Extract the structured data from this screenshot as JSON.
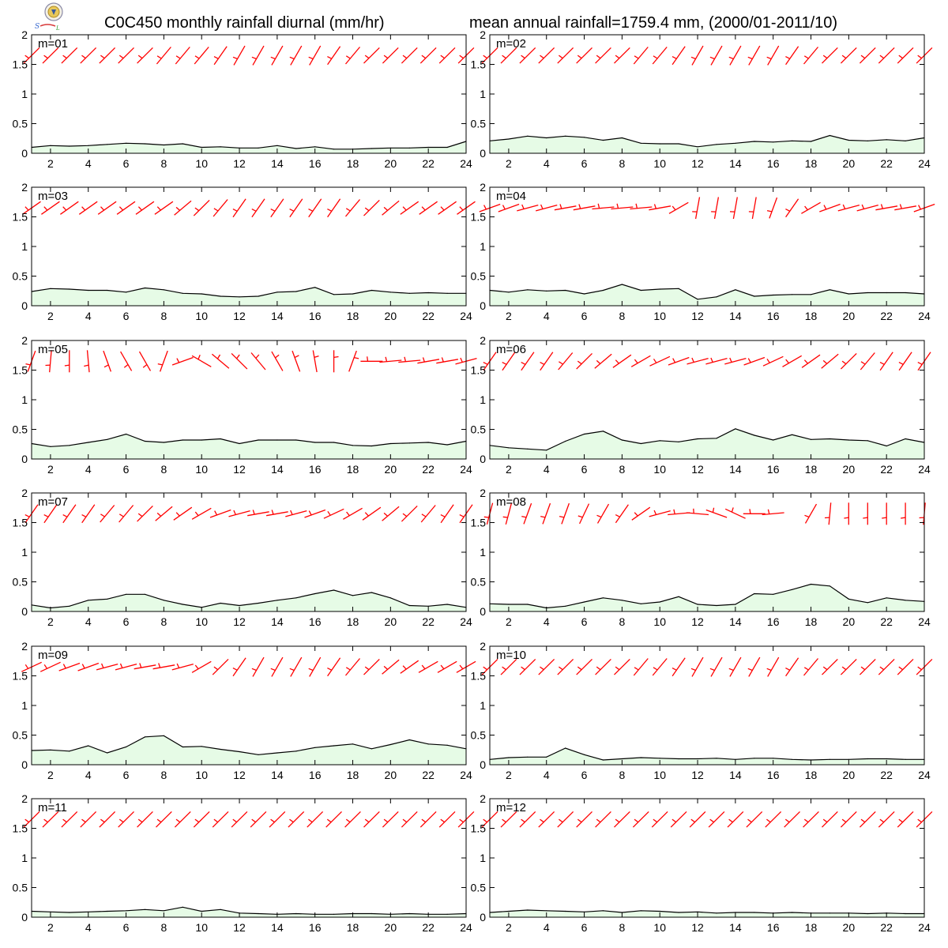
{
  "header": {
    "title_left": "C0C450 monthly rainfall diurnal (mm/hr)",
    "title_right": "mean annual rainfall=1759.4 mm, (2000/01-2011/10)",
    "logo_icon": "weather-lab-logo"
  },
  "colors": {
    "rain_fill": "#e6fbe6",
    "rain_line": "#000000",
    "wind_barb": "#ff0000"
  },
  "chart_data": [
    {
      "type": "area",
      "label": "m=01",
      "x": [
        1,
        2,
        3,
        4,
        5,
        6,
        7,
        8,
        9,
        10,
        11,
        12,
        13,
        14,
        15,
        16,
        17,
        18,
        19,
        20,
        21,
        22,
        23,
        24
      ],
      "values": [
        0.1,
        0.13,
        0.12,
        0.13,
        0.15,
        0.17,
        0.16,
        0.14,
        0.16,
        0.1,
        0.11,
        0.09,
        0.09,
        0.13,
        0.08,
        0.11,
        0.07,
        0.07,
        0.08,
        0.09,
        0.09,
        0.1,
        0.1,
        0.2
      ],
      "ylim": [
        0,
        2
      ],
      "xticks": [
        2,
        4,
        6,
        8,
        10,
        12,
        14,
        16,
        18,
        20,
        22,
        24
      ],
      "yticks": [
        0,
        0.5,
        1,
        1.5,
        2
      ],
      "wind_dir": [
        225,
        225,
        225,
        225,
        225,
        225,
        225,
        220,
        220,
        220,
        215,
        210,
        210,
        210,
        210,
        210,
        215,
        220,
        225,
        225,
        225,
        225,
        225,
        225
      ]
    },
    {
      "type": "area",
      "label": "m=02",
      "x": [
        1,
        2,
        3,
        4,
        5,
        6,
        7,
        8,
        9,
        10,
        11,
        12,
        13,
        14,
        15,
        16,
        17,
        18,
        19,
        20,
        21,
        22,
        23,
        24
      ],
      "values": [
        0.21,
        0.24,
        0.29,
        0.26,
        0.29,
        0.27,
        0.22,
        0.26,
        0.17,
        0.16,
        0.16,
        0.11,
        0.15,
        0.17,
        0.2,
        0.19,
        0.21,
        0.2,
        0.3,
        0.22,
        0.21,
        0.23,
        0.21,
        0.26
      ],
      "ylim": [
        0,
        2
      ],
      "xticks": [
        2,
        4,
        6,
        8,
        10,
        12,
        14,
        16,
        18,
        20,
        22,
        24
      ],
      "yticks": [
        0,
        0.5,
        1,
        1.5,
        2
      ],
      "wind_dir": [
        225,
        225,
        225,
        225,
        225,
        225,
        225,
        225,
        220,
        220,
        215,
        210,
        210,
        210,
        210,
        210,
        215,
        220,
        225,
        225,
        225,
        225,
        225,
        225
      ]
    },
    {
      "type": "area",
      "label": "m=03",
      "x": [
        1,
        2,
        3,
        4,
        5,
        6,
        7,
        8,
        9,
        10,
        11,
        12,
        13,
        14,
        15,
        16,
        17,
        18,
        19,
        20,
        21,
        22,
        23,
        24
      ],
      "values": [
        0.24,
        0.29,
        0.28,
        0.26,
        0.26,
        0.23,
        0.3,
        0.27,
        0.21,
        0.2,
        0.16,
        0.15,
        0.16,
        0.23,
        0.24,
        0.31,
        0.19,
        0.2,
        0.26,
        0.23,
        0.21,
        0.22,
        0.21,
        0.21
      ],
      "ylim": [
        0,
        2
      ],
      "xticks": [
        2,
        4,
        6,
        8,
        10,
        12,
        14,
        16,
        18,
        20,
        22,
        24
      ],
      "yticks": [
        0,
        0.5,
        1,
        1.5,
        2
      ],
      "wind_dir": [
        235,
        235,
        235,
        235,
        235,
        235,
        235,
        235,
        230,
        225,
        220,
        215,
        215,
        215,
        215,
        215,
        215,
        220,
        225,
        230,
        235,
        235,
        235,
        235
      ]
    },
    {
      "type": "area",
      "label": "m=04",
      "x": [
        1,
        2,
        3,
        4,
        5,
        6,
        7,
        8,
        9,
        10,
        11,
        12,
        13,
        14,
        15,
        16,
        17,
        18,
        19,
        20,
        21,
        22,
        23,
        24
      ],
      "values": [
        0.26,
        0.23,
        0.27,
        0.25,
        0.26,
        0.2,
        0.26,
        0.36,
        0.26,
        0.28,
        0.29,
        0.11,
        0.15,
        0.27,
        0.16,
        0.18,
        0.19,
        0.19,
        0.27,
        0.2,
        0.22,
        0.22,
        0.22,
        0.2
      ],
      "ylim": [
        0,
        2
      ],
      "xticks": [
        2,
        4,
        6,
        8,
        10,
        12,
        14,
        16,
        18,
        20,
        22,
        24
      ],
      "yticks": [
        0,
        0.5,
        1,
        1.5,
        2
      ],
      "wind_dir": [
        250,
        250,
        255,
        255,
        260,
        260,
        265,
        265,
        265,
        260,
        240,
        190,
        190,
        190,
        190,
        200,
        215,
        240,
        250,
        255,
        255,
        260,
        260,
        250
      ]
    },
    {
      "type": "area",
      "label": "m=05",
      "x": [
        1,
        2,
        3,
        4,
        5,
        6,
        7,
        8,
        9,
        10,
        11,
        12,
        13,
        14,
        15,
        16,
        17,
        18,
        19,
        20,
        21,
        22,
        23,
        24
      ],
      "values": [
        0.26,
        0.21,
        0.23,
        0.28,
        0.33,
        0.42,
        0.3,
        0.28,
        0.32,
        0.32,
        0.34,
        0.26,
        0.32,
        0.32,
        0.32,
        0.28,
        0.28,
        0.23,
        0.22,
        0.26,
        0.27,
        0.28,
        0.24,
        0.3
      ],
      "ylim": [
        0,
        2
      ],
      "xticks": [
        2,
        4,
        6,
        8,
        10,
        12,
        14,
        16,
        18,
        20,
        22,
        24
      ],
      "yticks": [
        0,
        0.5,
        1,
        1.5,
        2
      ],
      "wind_dir": [
        200,
        185,
        180,
        175,
        160,
        150,
        150,
        200,
        250,
        300,
        310,
        315,
        320,
        330,
        340,
        350,
        0,
        20,
        270,
        265,
        265,
        260,
        260,
        255
      ]
    },
    {
      "type": "area",
      "label": "m=06",
      "x": [
        1,
        2,
        3,
        4,
        5,
        6,
        7,
        8,
        9,
        10,
        11,
        12,
        13,
        14,
        15,
        16,
        17,
        18,
        19,
        20,
        21,
        22,
        23,
        24
      ],
      "values": [
        0.23,
        0.19,
        0.17,
        0.15,
        0.3,
        0.42,
        0.47,
        0.32,
        0.26,
        0.31,
        0.29,
        0.34,
        0.35,
        0.51,
        0.4,
        0.32,
        0.41,
        0.33,
        0.34,
        0.32,
        0.31,
        0.22,
        0.34,
        0.28
      ],
      "ylim": [
        0,
        2
      ],
      "xticks": [
        2,
        4,
        6,
        8,
        10,
        12,
        14,
        16,
        18,
        20,
        22,
        24
      ],
      "yticks": [
        0,
        0.5,
        1,
        1.5,
        2
      ],
      "wind_dir": [
        215,
        215,
        215,
        215,
        220,
        225,
        230,
        235,
        240,
        245,
        250,
        255,
        255,
        255,
        250,
        245,
        240,
        235,
        230,
        225,
        220,
        215,
        215,
        215
      ]
    },
    {
      "type": "area",
      "label": "m=07",
      "x": [
        1,
        2,
        3,
        4,
        5,
        6,
        7,
        8,
        9,
        10,
        11,
        12,
        13,
        14,
        15,
        16,
        17,
        18,
        19,
        20,
        21,
        22,
        23,
        24
      ],
      "values": [
        0.11,
        0.06,
        0.09,
        0.19,
        0.21,
        0.29,
        0.29,
        0.19,
        0.12,
        0.07,
        0.14,
        0.1,
        0.14,
        0.19,
        0.23,
        0.3,
        0.36,
        0.27,
        0.32,
        0.23,
        0.1,
        0.09,
        0.12,
        0.07
      ],
      "ylim": [
        0,
        2
      ],
      "xticks": [
        2,
        4,
        6,
        8,
        10,
        12,
        14,
        16,
        18,
        20,
        22,
        24
      ],
      "yticks": [
        0,
        0.5,
        1,
        1.5,
        2
      ],
      "wind_dir": [
        215,
        215,
        215,
        215,
        220,
        220,
        225,
        230,
        235,
        240,
        250,
        255,
        260,
        260,
        255,
        250,
        245,
        240,
        235,
        230,
        225,
        220,
        215,
        215
      ]
    },
    {
      "type": "area",
      "label": "m=08",
      "x": [
        1,
        2,
        3,
        4,
        5,
        6,
        7,
        8,
        9,
        10,
        11,
        12,
        13,
        14,
        15,
        16,
        17,
        18,
        19,
        20,
        21,
        22,
        23,
        24
      ],
      "values": [
        0.13,
        0.12,
        0.12,
        0.06,
        0.09,
        0.16,
        0.23,
        0.19,
        0.13,
        0.16,
        0.25,
        0.12,
        0.1,
        0.12,
        0.3,
        0.29,
        0.37,
        0.46,
        0.43,
        0.21,
        0.15,
        0.23,
        0.19,
        0.17
      ],
      "ylim": [
        0,
        2
      ],
      "xticks": [
        2,
        4,
        6,
        8,
        10,
        12,
        14,
        16,
        18,
        20,
        22,
        24
      ],
      "yticks": [
        0,
        0.5,
        1,
        1.5,
        2
      ],
      "wind_dir": [
        195,
        195,
        200,
        200,
        200,
        205,
        210,
        215,
        235,
        255,
        265,
        275,
        290,
        295,
        270,
        265,
        null,
        210,
        185,
        180,
        180,
        180,
        180,
        185
      ]
    },
    {
      "type": "area",
      "label": "m=09",
      "x": [
        1,
        2,
        3,
        4,
        5,
        6,
        7,
        8,
        9,
        10,
        11,
        12,
        13,
        14,
        15,
        16,
        17,
        18,
        19,
        20,
        21,
        22,
        23,
        24
      ],
      "values": [
        0.24,
        0.25,
        0.23,
        0.32,
        0.2,
        0.3,
        0.47,
        0.49,
        0.3,
        0.31,
        0.26,
        0.22,
        0.17,
        0.2,
        0.23,
        0.29,
        0.32,
        0.35,
        0.27,
        0.34,
        0.42,
        0.35,
        0.33,
        0.27
      ],
      "ylim": [
        0,
        2
      ],
      "xticks": [
        2,
        4,
        6,
        8,
        10,
        12,
        14,
        16,
        18,
        20,
        22,
        24
      ],
      "yticks": [
        0,
        0.5,
        1,
        1.5,
        2
      ],
      "wind_dir": [
        245,
        245,
        250,
        250,
        255,
        255,
        260,
        260,
        255,
        240,
        225,
        215,
        210,
        210,
        210,
        210,
        215,
        220,
        225,
        230,
        235,
        240,
        240,
        240
      ]
    },
    {
      "type": "area",
      "label": "m=10",
      "x": [
        1,
        2,
        3,
        4,
        5,
        6,
        7,
        8,
        9,
        10,
        11,
        12,
        13,
        14,
        15,
        16,
        17,
        18,
        19,
        20,
        21,
        22,
        23,
        24
      ],
      "values": [
        0.09,
        0.12,
        0.13,
        0.13,
        0.28,
        0.17,
        0.08,
        0.1,
        0.12,
        0.11,
        0.1,
        0.1,
        0.11,
        0.09,
        0.11,
        0.11,
        0.09,
        0.08,
        0.09,
        0.09,
        0.1,
        0.1,
        0.09,
        0.09
      ],
      "ylim": [
        0,
        2
      ],
      "xticks": [
        2,
        4,
        6,
        8,
        10,
        12,
        14,
        16,
        18,
        20,
        22,
        24
      ],
      "yticks": [
        0,
        0.5,
        1,
        1.5,
        2
      ],
      "wind_dir": [
        225,
        225,
        225,
        225,
        225,
        225,
        225,
        225,
        220,
        220,
        215,
        210,
        210,
        210,
        210,
        210,
        215,
        220,
        225,
        225,
        225,
        225,
        225,
        225
      ]
    },
    {
      "type": "area",
      "label": "m=11",
      "x": [
        1,
        2,
        3,
        4,
        5,
        6,
        7,
        8,
        9,
        10,
        11,
        12,
        13,
        14,
        15,
        16,
        17,
        18,
        19,
        20,
        21,
        22,
        23,
        24
      ],
      "values": [
        0.1,
        0.09,
        0.08,
        0.09,
        0.1,
        0.11,
        0.13,
        0.11,
        0.17,
        0.1,
        0.13,
        0.07,
        0.06,
        0.05,
        0.06,
        0.05,
        0.05,
        0.06,
        0.06,
        0.05,
        0.06,
        0.05,
        0.05,
        0.06
      ],
      "ylim": [
        0,
        2
      ],
      "xticks": [
        2,
        4,
        6,
        8,
        10,
        12,
        14,
        16,
        18,
        20,
        22,
        24
      ],
      "yticks": [
        0,
        0.5,
        1,
        1.5,
        2
      ],
      "wind_dir": [
        225,
        225,
        225,
        225,
        225,
        225,
        225,
        225,
        225,
        225,
        225,
        225,
        225,
        225,
        225,
        225,
        225,
        225,
        225,
        225,
        225,
        225,
        225,
        225
      ]
    },
    {
      "type": "area",
      "label": "m=12",
      "x": [
        1,
        2,
        3,
        4,
        5,
        6,
        7,
        8,
        9,
        10,
        11,
        12,
        13,
        14,
        15,
        16,
        17,
        18,
        19,
        20,
        21,
        22,
        23,
        24
      ],
      "values": [
        0.08,
        0.1,
        0.12,
        0.11,
        0.1,
        0.09,
        0.11,
        0.08,
        0.11,
        0.1,
        0.08,
        0.09,
        0.07,
        0.08,
        0.08,
        0.07,
        0.08,
        0.07,
        0.07,
        0.07,
        0.06,
        0.07,
        0.06,
        0.06
      ],
      "ylim": [
        0,
        2
      ],
      "xticks": [
        2,
        4,
        6,
        8,
        10,
        12,
        14,
        16,
        18,
        20,
        22,
        24
      ],
      "yticks": [
        0,
        0.5,
        1,
        1.5,
        2
      ],
      "wind_dir": [
        225,
        225,
        225,
        225,
        225,
        225,
        225,
        225,
        225,
        225,
        225,
        225,
        225,
        225,
        225,
        225,
        225,
        225,
        225,
        225,
        225,
        225,
        225,
        225
      ]
    }
  ]
}
